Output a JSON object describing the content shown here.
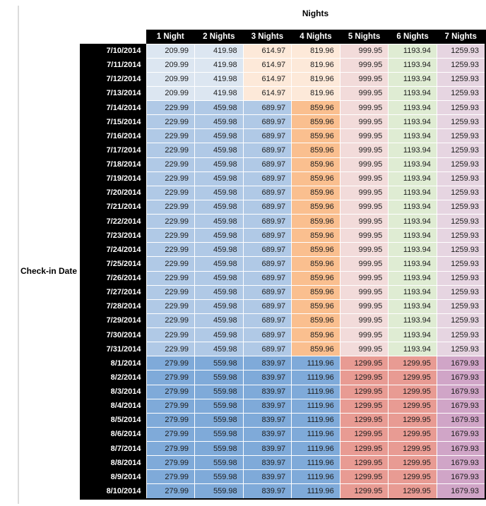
{
  "title": "Nights",
  "left_axis_label": "Check-in Date",
  "columns": [
    "1 Night",
    "2 Nights",
    "3 Nights",
    "4 Nights",
    "5 Nights",
    "6 Nights",
    "7 Nights"
  ],
  "palette": {
    "header_bg": "#000000",
    "header_text": "#ffffff",
    "cell_text": "#1c1c1c",
    "blue_light": "#dce6f1",
    "blue_mid": "#b0c9e6",
    "blue_dark": "#7faad9",
    "orange_light": "#fde9d9",
    "orange_mid": "#fabf8f",
    "pink_light": "#f2dbda",
    "green_light": "#dfecd3",
    "purple_light": "#e6d5e1",
    "salmon": "#e89b93",
    "mauve": "#d0a5c7"
  },
  "bands": {
    "early_july": {
      "prices": [
        "209.99",
        "419.98",
        "614.97",
        "819.96",
        "999.95",
        "1193.94",
        "1259.93"
      ],
      "cell_colors": [
        "blue_light",
        "blue_light",
        "orange_light",
        "orange_light",
        "pink_light",
        "green_light",
        "purple_light"
      ]
    },
    "mid_july": {
      "prices": [
        "229.99",
        "459.98",
        "689.97",
        "859.96",
        "999.95",
        "1193.94",
        "1259.93"
      ],
      "cell_colors": [
        "blue_mid",
        "blue_mid",
        "blue_mid",
        "orange_mid",
        "pink_light",
        "green_light",
        "purple_light"
      ]
    },
    "august": {
      "prices": [
        "279.99",
        "559.98",
        "839.97",
        "1119.96",
        "1299.95",
        "1299.95",
        "1679.93"
      ],
      "cell_colors": [
        "blue_dark",
        "blue_dark",
        "blue_dark",
        "blue_dark",
        "salmon",
        "salmon",
        "mauve"
      ]
    }
  },
  "rows": [
    {
      "date": "7/10/2014",
      "band": "early_july"
    },
    {
      "date": "7/11/2014",
      "band": "early_july"
    },
    {
      "date": "7/12/2014",
      "band": "early_july"
    },
    {
      "date": "7/13/2014",
      "band": "early_july"
    },
    {
      "date": "7/14/2014",
      "band": "mid_july"
    },
    {
      "date": "7/15/2014",
      "band": "mid_july"
    },
    {
      "date": "7/16/2014",
      "band": "mid_july"
    },
    {
      "date": "7/17/2014",
      "band": "mid_july"
    },
    {
      "date": "7/18/2014",
      "band": "mid_july"
    },
    {
      "date": "7/19/2014",
      "band": "mid_july"
    },
    {
      "date": "7/20/2014",
      "band": "mid_july"
    },
    {
      "date": "7/21/2014",
      "band": "mid_july"
    },
    {
      "date": "7/22/2014",
      "band": "mid_july"
    },
    {
      "date": "7/23/2014",
      "band": "mid_july"
    },
    {
      "date": "7/24/2014",
      "band": "mid_july"
    },
    {
      "date": "7/25/2014",
      "band": "mid_july"
    },
    {
      "date": "7/26/2014",
      "band": "mid_july"
    },
    {
      "date": "7/27/2014",
      "band": "mid_july"
    },
    {
      "date": "7/28/2014",
      "band": "mid_july"
    },
    {
      "date": "7/29/2014",
      "band": "mid_july"
    },
    {
      "date": "7/30/2014",
      "band": "mid_july"
    },
    {
      "date": "7/31/2014",
      "band": "mid_july"
    },
    {
      "date": "8/1/2014",
      "band": "august"
    },
    {
      "date": "8/2/2014",
      "band": "august"
    },
    {
      "date": "8/3/2014",
      "band": "august"
    },
    {
      "date": "8/4/2014",
      "band": "august"
    },
    {
      "date": "8/5/2014",
      "band": "august"
    },
    {
      "date": "8/6/2014",
      "band": "august"
    },
    {
      "date": "8/7/2014",
      "band": "august"
    },
    {
      "date": "8/8/2014",
      "band": "august"
    },
    {
      "date": "8/9/2014",
      "band": "august"
    },
    {
      "date": "8/10/2014",
      "band": "august"
    }
  ]
}
